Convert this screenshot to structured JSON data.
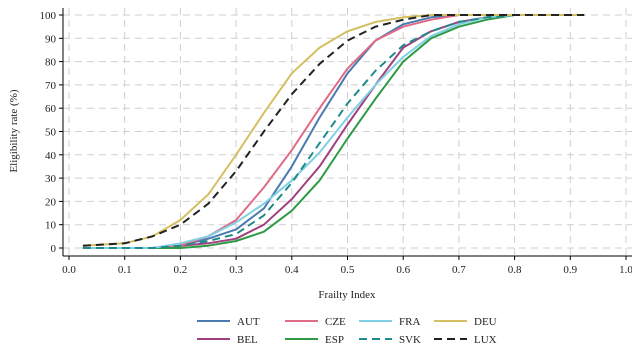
{
  "chart_data": {
    "type": "line",
    "title": "",
    "xlabel": "Frailty Index",
    "ylabel": "Eligibility rate (%)",
    "xlim": [
      0.0,
      1.0
    ],
    "ylim": [
      0,
      100
    ],
    "x_ticks": [
      "0.0",
      "0.1",
      "0.2",
      "0.3",
      "0.4",
      "0.5",
      "0.6",
      "0.7",
      "0.8",
      "0.9",
      "1.0"
    ],
    "y_ticks": [
      "0",
      "10",
      "20",
      "30",
      "40",
      "50",
      "60",
      "70",
      "80",
      "90",
      "100"
    ],
    "grid": true,
    "legend_position": "bottom",
    "series": [
      {
        "name": "AUT",
        "color": "#4a7ab0",
        "dash": "solid",
        "x": [
          0.025,
          0.1,
          0.15,
          0.2,
          0.25,
          0.3,
          0.35,
          0.4,
          0.45,
          0.5,
          0.55,
          0.6,
          0.65,
          0.7,
          0.75,
          0.8,
          0.85,
          0.925
        ],
        "y": [
          0,
          0,
          0,
          1,
          4,
          8,
          17,
          35,
          56,
          75,
          89,
          96,
          99,
          100,
          100,
          100,
          100,
          100
        ]
      },
      {
        "name": "BEL",
        "color": "#a0407e",
        "dash": "solid",
        "x": [
          0.025,
          0.1,
          0.15,
          0.2,
          0.25,
          0.3,
          0.35,
          0.4,
          0.45,
          0.5,
          0.55,
          0.6,
          0.65,
          0.7,
          0.75,
          0.8,
          0.85,
          0.925
        ],
        "y": [
          0,
          0,
          0,
          1,
          2,
          4,
          10,
          21,
          35,
          53,
          70,
          86,
          93,
          97,
          99,
          100,
          100,
          100
        ]
      },
      {
        "name": "CZE",
        "color": "#e06b86",
        "dash": "solid",
        "x": [
          0.025,
          0.1,
          0.15,
          0.2,
          0.25,
          0.3,
          0.35,
          0.4,
          0.45,
          0.5,
          0.55,
          0.6,
          0.65,
          0.7,
          0.75,
          0.8,
          0.85,
          0.925
        ],
        "y": [
          0,
          0,
          0,
          1,
          5,
          12,
          26,
          42,
          60,
          77,
          89,
          95,
          98,
          100,
          100,
          100,
          100,
          100
        ]
      },
      {
        "name": "ESP",
        "color": "#2e9a45",
        "dash": "solid",
        "x": [
          0.025,
          0.1,
          0.15,
          0.2,
          0.25,
          0.3,
          0.35,
          0.4,
          0.45,
          0.5,
          0.55,
          0.6,
          0.65,
          0.7,
          0.75,
          0.8,
          0.85,
          0.925
        ],
        "y": [
          0,
          0,
          0,
          0,
          1,
          3,
          7,
          16,
          29,
          47,
          64,
          80,
          90,
          95,
          98,
          100,
          100,
          100
        ]
      },
      {
        "name": "FRA",
        "color": "#7fd0e4",
        "dash": "solid",
        "x": [
          0.025,
          0.1,
          0.15,
          0.2,
          0.25,
          0.3,
          0.35,
          0.4,
          0.45,
          0.5,
          0.55,
          0.6,
          0.65,
          0.7,
          0.75,
          0.8,
          0.85,
          0.925
        ],
        "y": [
          0,
          0,
          0,
          2,
          5,
          11,
          19,
          29,
          41,
          56,
          70,
          82,
          91,
          96,
          99,
          100,
          100,
          100
        ]
      },
      {
        "name": "SVK",
        "color": "#1e8a8a",
        "dash": "dashed",
        "x": [
          0.025,
          0.1,
          0.15,
          0.2,
          0.25,
          0.3,
          0.35,
          0.4,
          0.45,
          0.5,
          0.55,
          0.6,
          0.65,
          0.7,
          0.75,
          0.8,
          0.85,
          0.925
        ],
        "y": [
          0,
          0,
          0,
          1,
          3,
          6,
          14,
          28,
          45,
          62,
          76,
          87,
          93,
          97,
          99,
          100,
          100,
          100
        ]
      },
      {
        "name": "DEU",
        "color": "#d4c060",
        "dash": "solid",
        "x": [
          0.025,
          0.1,
          0.15,
          0.2,
          0.25,
          0.3,
          0.35,
          0.4,
          0.45,
          0.5,
          0.55,
          0.6,
          0.65,
          0.7,
          0.75,
          0.8,
          0.85,
          0.925
        ],
        "y": [
          1,
          2,
          5,
          12,
          23,
          40,
          58,
          75,
          86,
          93,
          97,
          99,
          100,
          100,
          100,
          100,
          100,
          100
        ]
      },
      {
        "name": "LUX",
        "color": "#222222",
        "dash": "dashed",
        "x": [
          0.025,
          0.1,
          0.15,
          0.2,
          0.25,
          0.3,
          0.35,
          0.4,
          0.45,
          0.5,
          0.55,
          0.6,
          0.65,
          0.7,
          0.75,
          0.8,
          0.85,
          0.925
        ],
        "y": [
          1,
          2,
          5,
          10,
          19,
          33,
          50,
          66,
          79,
          89,
          95,
          98,
          100,
          100,
          100,
          100,
          100,
          100
        ]
      }
    ]
  }
}
